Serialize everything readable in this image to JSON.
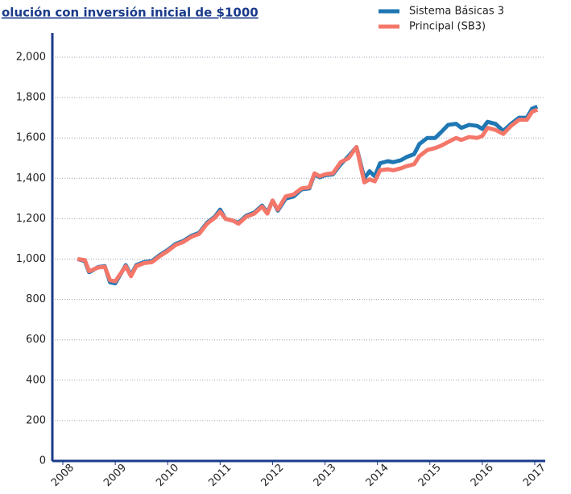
{
  "chart_data": {
    "type": "line",
    "title": "olución con inversión inicial de $1000",
    "x": [
      2008.28,
      2008.42,
      2008.5,
      2008.67,
      2008.8,
      2008.9,
      2009.0,
      2009.2,
      2009.3,
      2009.4,
      2009.55,
      2009.7,
      2009.85,
      2010.0,
      2010.15,
      2010.3,
      2010.45,
      2010.6,
      2010.75,
      2010.9,
      2011.0,
      2011.1,
      2011.25,
      2011.35,
      2011.5,
      2011.65,
      2011.8,
      2011.9,
      2012.0,
      2012.1,
      2012.25,
      2012.4,
      2012.55,
      2012.7,
      2012.8,
      2012.9,
      2013.0,
      2013.15,
      2013.3,
      2013.45,
      2013.6,
      2013.75,
      2013.85,
      2013.95,
      2014.05,
      2014.2,
      2014.3,
      2014.45,
      2014.55,
      2014.7,
      2014.8,
      2014.95,
      2015.1,
      2015.2,
      2015.35,
      2015.5,
      2015.6,
      2015.75,
      2015.9,
      2016.0,
      2016.1,
      2016.25,
      2016.4,
      2016.55,
      2016.7,
      2016.85,
      2016.95,
      2017.05
    ],
    "series": [
      {
        "name": "Sistema Básicas 3",
        "color": "#1f77b4",
        "values": [
          1000,
          990,
          935,
          960,
          965,
          885,
          880,
          970,
          920,
          970,
          985,
          990,
          1020,
          1045,
          1075,
          1090,
          1115,
          1130,
          1180,
          1210,
          1245,
          1200,
          1190,
          1180,
          1215,
          1230,
          1265,
          1230,
          1290,
          1240,
          1300,
          1310,
          1345,
          1350,
          1420,
          1405,
          1415,
          1420,
          1470,
          1510,
          1555,
          1400,
          1435,
          1410,
          1475,
          1485,
          1480,
          1490,
          1505,
          1520,
          1570,
          1600,
          1600,
          1625,
          1665,
          1670,
          1650,
          1665,
          1660,
          1645,
          1680,
          1670,
          1635,
          1670,
          1700,
          1700,
          1745,
          1755
        ]
      },
      {
        "name": "Principal (SB3)",
        "color": "#f4776a",
        "values": [
          1000,
          995,
          940,
          958,
          962,
          895,
          890,
          965,
          915,
          965,
          980,
          985,
          1015,
          1040,
          1070,
          1085,
          1110,
          1125,
          1175,
          1205,
          1235,
          1200,
          1190,
          1175,
          1210,
          1225,
          1260,
          1225,
          1290,
          1245,
          1310,
          1320,
          1350,
          1355,
          1425,
          1410,
          1420,
          1425,
          1480,
          1500,
          1555,
          1380,
          1395,
          1385,
          1440,
          1445,
          1440,
          1450,
          1460,
          1470,
          1510,
          1540,
          1550,
          1560,
          1580,
          1600,
          1590,
          1605,
          1600,
          1610,
          1650,
          1640,
          1620,
          1660,
          1690,
          1690,
          1730,
          1740
        ]
      }
    ],
    "xlim": [
      2007.8,
      2017.2
    ],
    "xticks": [
      2008,
      2009,
      2010,
      2011,
      2012,
      2013,
      2014,
      2015,
      2016,
      2017
    ],
    "ylim": [
      0,
      2000
    ],
    "yticks": [
      0,
      {
        "value": 200,
        "label": "200"
      },
      400,
      600,
      800,
      {
        "value": 1000,
        "label": "1,000"
      },
      {
        "value": 1200,
        "label": "1,200"
      },
      {
        "value": 1400,
        "label": "1,400"
      },
      {
        "value": 1600,
        "label": "1,600"
      },
      {
        "value": 1800,
        "label": "1,800"
      },
      {
        "value": 2000,
        "label": "2,000"
      }
    ],
    "grid": true
  }
}
